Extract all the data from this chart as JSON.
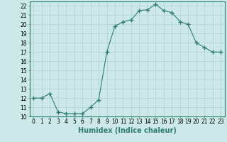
{
  "x": [
    0,
    1,
    2,
    3,
    4,
    5,
    6,
    7,
    8,
    9,
    10,
    11,
    12,
    13,
    14,
    15,
    16,
    17,
    18,
    19,
    20,
    21,
    22,
    23
  ],
  "y": [
    12,
    12,
    12.5,
    10.5,
    10.3,
    10.3,
    10.3,
    11.0,
    11.8,
    17.0,
    19.8,
    20.3,
    20.5,
    21.5,
    21.6,
    22.2,
    21.5,
    21.3,
    20.3,
    20.0,
    18.0,
    17.5,
    17.0,
    17.0
  ],
  "line_color": "#2e7d6e",
  "marker": "+",
  "marker_size": 4,
  "bg_color": "#cce8e8",
  "grid_color": "#b0d0d0",
  "xlabel": "Humidex (Indice chaleur)",
  "ylim": [
    10,
    22.5
  ],
  "xlim": [
    -0.5,
    23.5
  ],
  "yticks": [
    10,
    11,
    12,
    13,
    14,
    15,
    16,
    17,
    18,
    19,
    20,
    21,
    22
  ],
  "xticks": [
    0,
    1,
    2,
    3,
    4,
    5,
    6,
    7,
    8,
    9,
    10,
    11,
    12,
    13,
    14,
    15,
    16,
    17,
    18,
    19,
    20,
    21,
    22,
    23
  ],
  "tick_fontsize": 5.5,
  "xlabel_fontsize": 7
}
